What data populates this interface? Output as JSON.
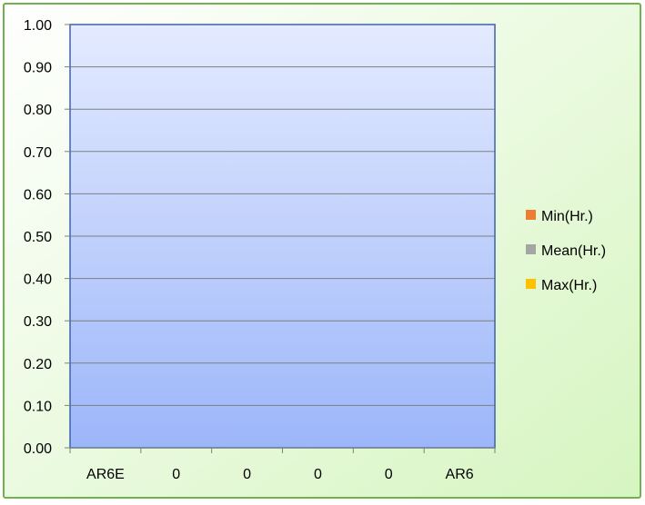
{
  "chart_data": {
    "type": "bar",
    "categories": [
      "AR6E",
      "0",
      "0",
      "0",
      "0",
      "AR6"
    ],
    "series": [
      {
        "name": "Min(Hr.)",
        "color": "#ed7d31",
        "values": [
          0,
          0,
          0,
          0,
          0,
          0
        ]
      },
      {
        "name": "Mean(Hr.)",
        "color": "#a5a5a5",
        "values": [
          0,
          0,
          0,
          0,
          0,
          0
        ]
      },
      {
        "name": "Max(Hr.)",
        "color": "#ffc000",
        "values": [
          0,
          0,
          0,
          0,
          0,
          0
        ]
      }
    ],
    "ylim": [
      0,
      1
    ],
    "yticks": [
      "0.00",
      "0.10",
      "0.20",
      "0.30",
      "0.40",
      "0.50",
      "0.60",
      "0.70",
      "0.80",
      "0.90",
      "1.00"
    ],
    "grid": true,
    "legend_position": "right",
    "colors": {
      "chart_bg_top": "#ffffff",
      "chart_bg_bottom": "#d6f5c0",
      "chart_border": "#6fb24f",
      "plot_bg_top": "#e4ebff",
      "plot_bg_bottom": "#9cb6f9",
      "plot_border": "#3f63a8",
      "gridline": "#7f7f7f"
    }
  }
}
